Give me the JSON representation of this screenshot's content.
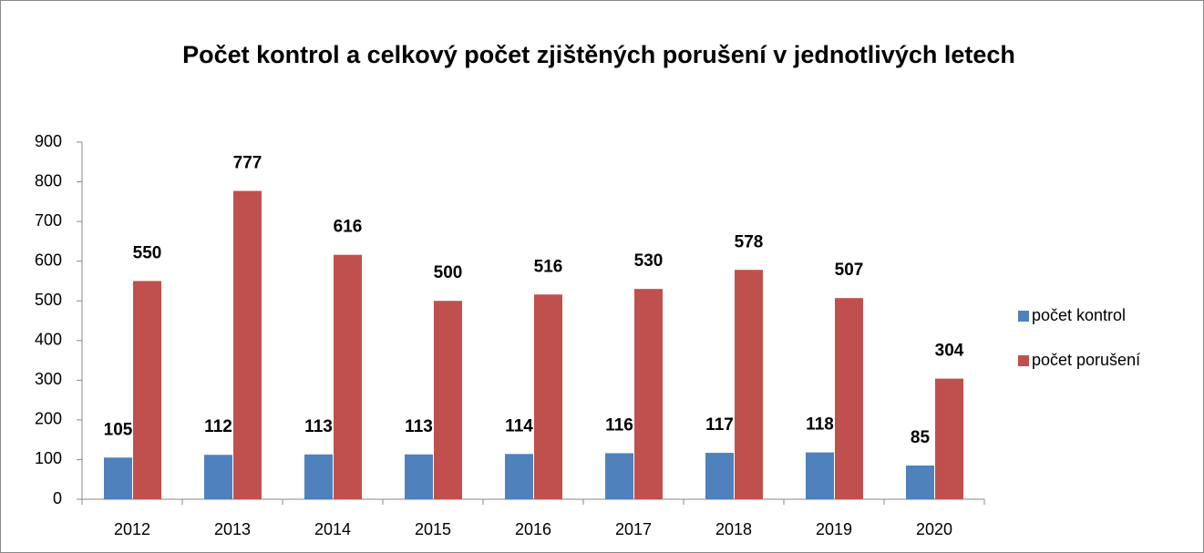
{
  "chart_data": {
    "type": "bar",
    "title": "Počet kontrol a celkový počet zjištěných porušení v jednotlivých letech",
    "categories": [
      "2012",
      "2013",
      "2014",
      "2015",
      "2016",
      "2017",
      "2018",
      "2019",
      "2020"
    ],
    "series": [
      {
        "name": "počet kontrol",
        "color": "#4f81bd",
        "values": [
          105,
          112,
          113,
          113,
          114,
          116,
          117,
          118,
          85
        ]
      },
      {
        "name": "počet porušení",
        "color": "#c0504d",
        "values": [
          550,
          777,
          616,
          500,
          516,
          530,
          578,
          507,
          304
        ]
      }
    ],
    "ylim": [
      0,
      900
    ],
    "yticks": [
      0,
      100,
      200,
      300,
      400,
      500,
      600,
      700,
      800,
      900
    ],
    "grid": false,
    "legend": "right"
  }
}
